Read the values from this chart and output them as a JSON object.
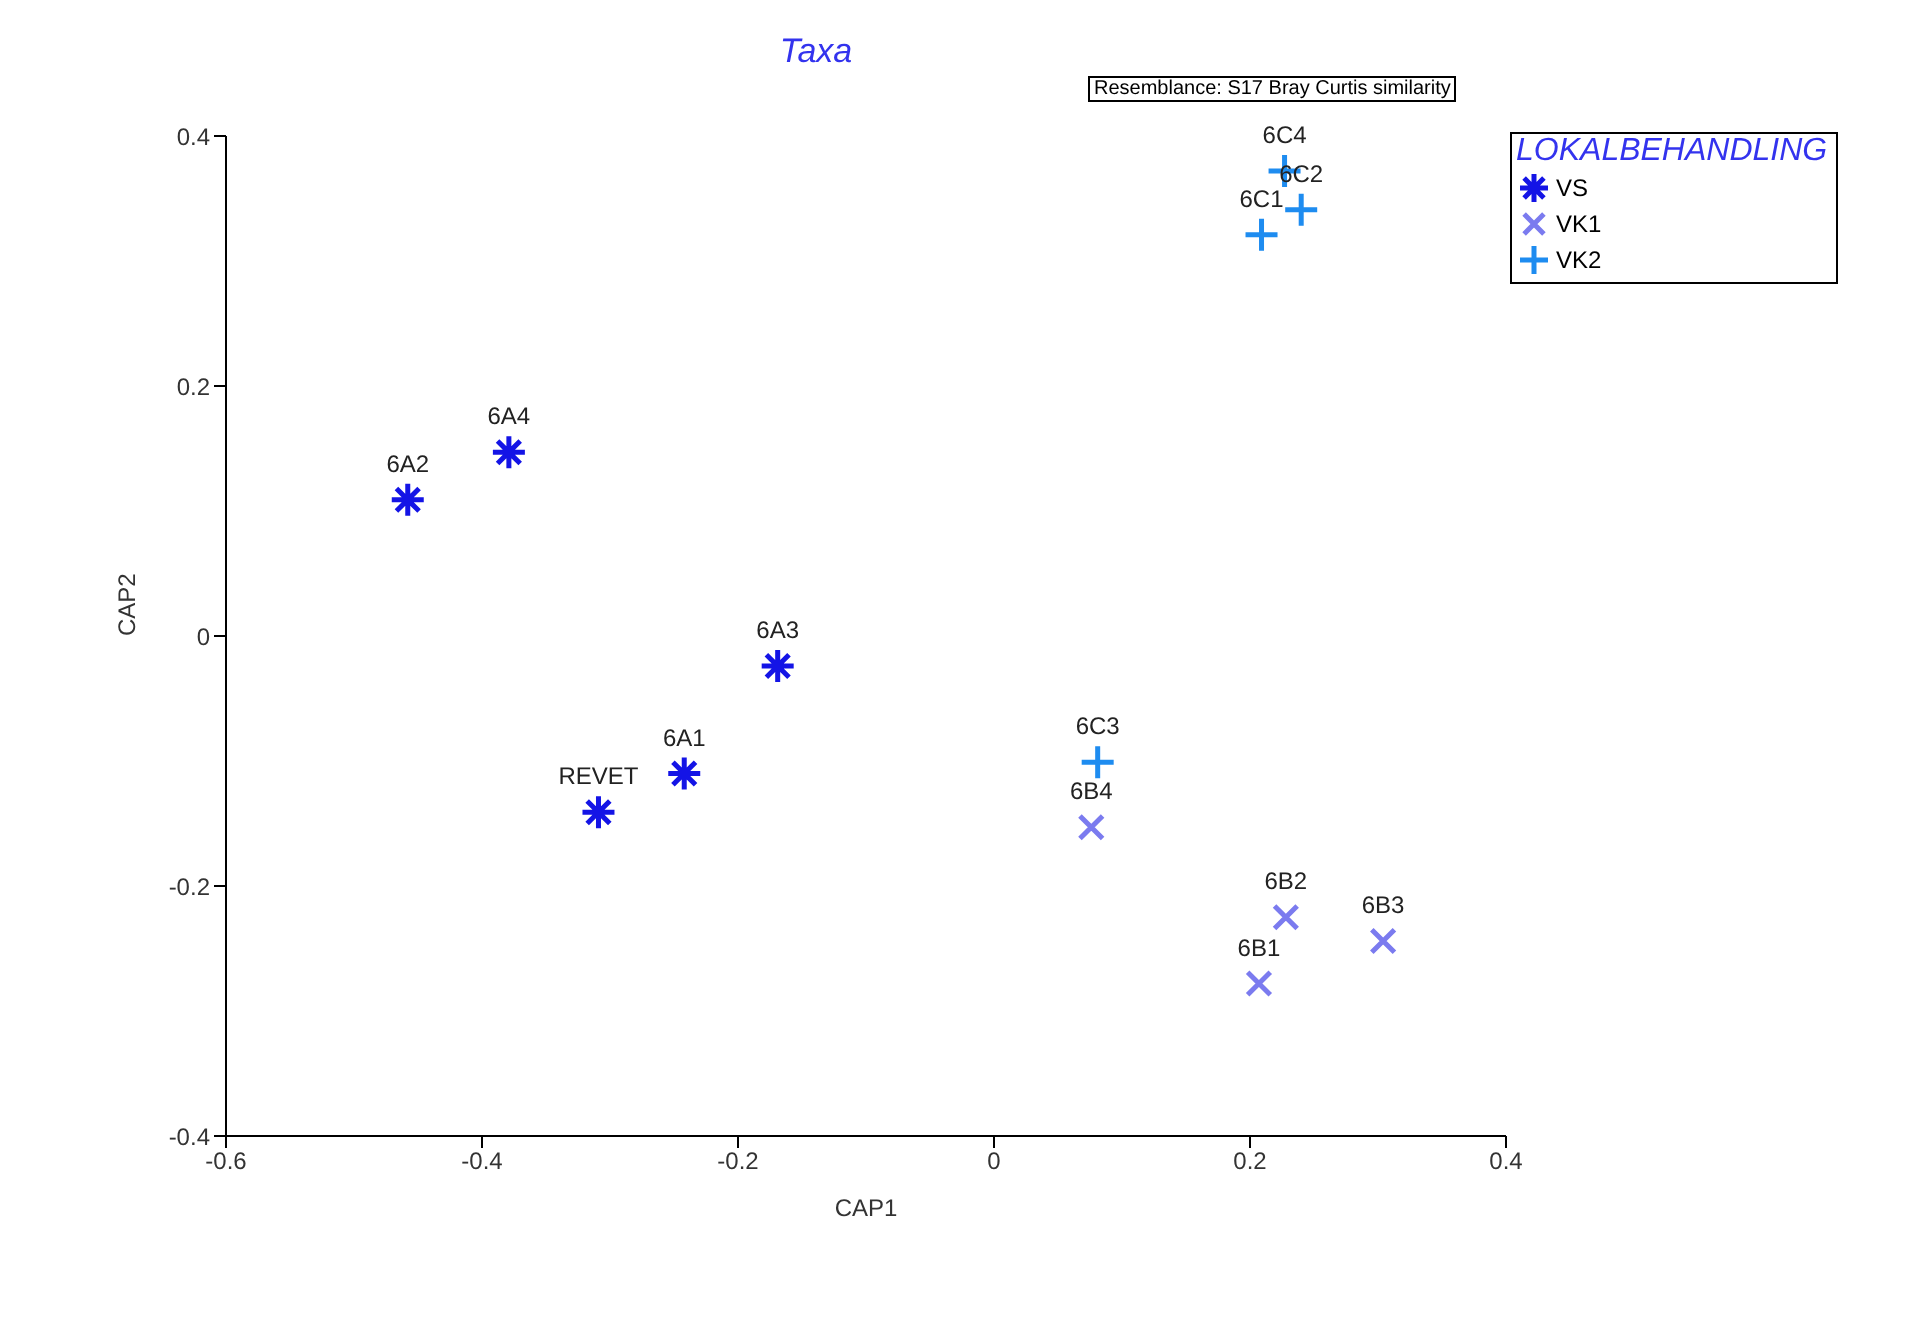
{
  "chart_data": {
    "type": "scatter",
    "title": "Taxa",
    "xlabel": "CAP1",
    "ylabel": "CAP2",
    "legend_title": "LOKALBEHANDLING",
    "legend": "top right",
    "marker": "cross",
    "xlim": [
      -0.6,
      0.4
    ],
    "ylim": [
      -0.4,
      0.4
    ],
    "xticks": [
      -0.6,
      -0.4,
      -0.2,
      0,
      0.2,
      0.4
    ],
    "yticks": [
      -0.4,
      -0.2,
      0,
      0.2,
      0.4
    ],
    "grid": false,
    "series": [
      {
        "name": "VS",
        "color": "#1414e6",
        "x": [
          -0.458,
          -0.379,
          -0.169,
          -0.242,
          -0.309
        ],
        "values": [
          0.109,
          0.147,
          -0.024,
          -0.11,
          -0.141
        ]
      },
      {
        "name": "VK1",
        "color": "#7b7bef",
        "x": [
          0.076,
          0.228,
          0.207,
          0.304
        ],
        "values": [
          -0.153,
          -0.225,
          -0.278,
          -0.244
        ]
      },
      {
        "name": "VK2",
        "color": "#1e8cf0",
        "x": [
          0.081,
          0.227,
          0.24,
          0.209
        ],
        "values": [
          -0.101,
          0.372,
          0.341,
          0.321
        ]
      }
    ],
    "annotations": [
      "Resemblance: S17 Bray Curtis similarity",
      {
        "text": "6A2",
        "x": -0.458,
        "y": 0.109
      },
      {
        "text": "6A4",
        "x": -0.379,
        "y": 0.147
      },
      {
        "text": "6A3",
        "x": -0.169,
        "y": -0.024
      },
      {
        "text": "6A1",
        "x": -0.242,
        "y": -0.11
      },
      {
        "text": "REVET",
        "x": -0.309,
        "y": -0.141
      },
      {
        "text": "6B4",
        "x": 0.076,
        "y": -0.153
      },
      {
        "text": "6B2",
        "x": 0.228,
        "y": -0.225
      },
      {
        "text": "6B1",
        "x": 0.207,
        "y": -0.278
      },
      {
        "text": "6B3",
        "x": 0.304,
        "y": -0.244
      },
      {
        "text": "6C3",
        "x": 0.081,
        "y": -0.101
      },
      {
        "text": "6C4",
        "x": 0.227,
        "y": 0.372
      },
      {
        "text": "6C2",
        "x": 0.24,
        "y": 0.341
      },
      {
        "text": "6C1",
        "x": 0.209,
        "y": 0.321
      }
    ]
  }
}
